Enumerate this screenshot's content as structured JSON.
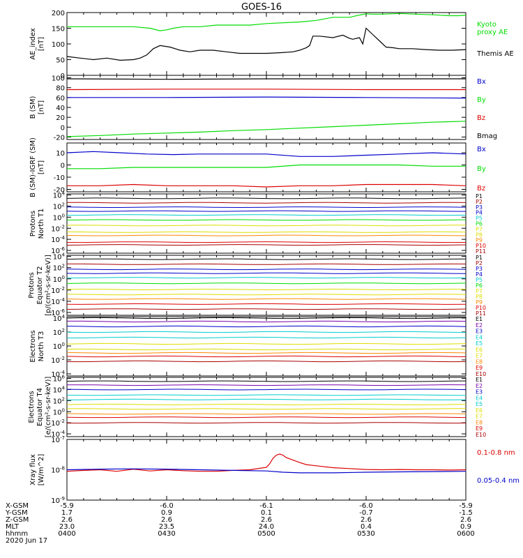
{
  "title": "GOES-16",
  "colors": {
    "black": "#000000",
    "red": "#dd0000",
    "green": "#00dd00",
    "blue": "#0000cc",
    "cyan": "#00cccc",
    "yellow": "#dddd00",
    "orange": "#ff8800",
    "purple": "#7700aa",
    "darkred": "#aa0000",
    "grid": "#000000"
  },
  "date_label": "2020 Jun 17",
  "footer": {
    "rows": [
      {
        "label": "X-GSM",
        "values": [
          "-5.9",
          "-6.0",
          "-6.1",
          "-6.0",
          "-5.9"
        ]
      },
      {
        "label": "Y-GSM",
        "values": [
          "1.7",
          "0.9",
          "0.1",
          "-0.7",
          "-1.5"
        ]
      },
      {
        "label": "Z-GSM",
        "values": [
          "2.6",
          "2.6",
          "2.6",
          "2.6",
          "2.6"
        ]
      },
      {
        "label": "MLT",
        "values": [
          "23.0",
          "23.5",
          "24.0",
          "0.4",
          "0.9"
        ]
      },
      {
        "label": "hhmm",
        "values": [
          "0400",
          "0430",
          "0500",
          "0530",
          "0600"
        ]
      }
    ]
  },
  "chart_data": [
    {
      "type": "line",
      "ylabel": [
        "AE_index",
        "[nT]"
      ],
      "ylim": [
        0,
        200
      ],
      "yticks": [
        "0",
        "50",
        "100",
        "150",
        "200"
      ],
      "scale": "linear",
      "xlim": [
        0,
        120
      ],
      "series": [
        {
          "name": "Kyoto proxy AE",
          "label_lines": [
            "Kyoto",
            "proxy AE"
          ],
          "color": "green",
          "x": [
            0,
            10,
            20,
            25,
            28,
            30,
            32,
            35,
            40,
            45,
            55,
            60,
            70,
            75,
            80,
            85,
            88,
            90,
            92,
            95,
            100,
            105,
            110,
            115,
            118,
            120
          ],
          "y": [
            155,
            155,
            155,
            150,
            142,
            145,
            150,
            155,
            155,
            160,
            160,
            165,
            170,
            175,
            185,
            185,
            192,
            196,
            195,
            195,
            197,
            195,
            193,
            190,
            190,
            192
          ]
        },
        {
          "name": "Themis AE",
          "label_lines": [
            "Themis AE"
          ],
          "color": "black",
          "x": [
            0,
            4,
            8,
            12,
            16,
            20,
            22,
            24,
            26,
            28,
            31,
            34,
            37,
            40,
            44,
            48,
            52,
            56,
            60,
            64,
            68,
            70,
            72,
            73,
            74,
            76,
            80,
            83,
            85,
            86,
            88,
            89,
            90,
            92,
            94,
            96,
            98,
            100,
            104,
            108,
            112,
            116,
            120
          ],
          "y": [
            60,
            55,
            50,
            55,
            48,
            50,
            55,
            65,
            85,
            95,
            90,
            80,
            75,
            80,
            80,
            75,
            70,
            70,
            70,
            72,
            75,
            80,
            88,
            95,
            125,
            125,
            120,
            128,
            118,
            115,
            120,
            100,
            150,
            130,
            110,
            90,
            88,
            85,
            85,
            82,
            80,
            80,
            82
          ]
        }
      ]
    },
    {
      "type": "line",
      "ylabel": [
        "B (SM)",
        "[nT]"
      ],
      "ylim": [
        -25,
        105
      ],
      "yticks": [
        "-20",
        "0",
        "20",
        "40",
        "60",
        "80",
        "100"
      ],
      "scale": "linear",
      "xlim": [
        0,
        120
      ],
      "series": [
        {
          "name": "Bx",
          "color": "blue",
          "x": [
            0,
            30,
            60,
            90,
            120
          ],
          "y": [
            60,
            60,
            61,
            60,
            59
          ]
        },
        {
          "name": "By",
          "color": "green",
          "x": [
            0,
            10,
            20,
            30,
            40,
            50,
            60,
            70,
            80,
            90,
            100,
            110,
            120
          ],
          "y": [
            -19,
            -17,
            -14,
            -12,
            -10,
            -7,
            -5,
            -2,
            1,
            4,
            7,
            10,
            12
          ]
        },
        {
          "name": "Bz",
          "color": "red",
          "x": [
            0,
            30,
            60,
            90,
            120
          ],
          "y": [
            76,
            77,
            77,
            76,
            76
          ]
        },
        {
          "name": "Bmag",
          "color": "black",
          "x": [
            0,
            30,
            60,
            90,
            120
          ],
          "y": [
            98,
            97,
            98,
            98,
            98
          ]
        }
      ]
    },
    {
      "type": "line",
      "ylabel": [
        "B (SM)-IGRF (SM)",
        "[nT]"
      ],
      "ylim": [
        -22,
        18
      ],
      "yticks": [
        "-20",
        "-10",
        "0",
        "10"
      ],
      "scale": "linear",
      "xlim": [
        0,
        120
      ],
      "series": [
        {
          "name": "Bx",
          "color": "blue",
          "x": [
            0,
            8,
            16,
            24,
            32,
            40,
            50,
            60,
            70,
            80,
            90,
            100,
            110,
            120
          ],
          "y": [
            10,
            11,
            10,
            9,
            8.5,
            9,
            9,
            9,
            7,
            7,
            8,
            9,
            10,
            9
          ]
        },
        {
          "name": "By",
          "color": "green",
          "x": [
            0,
            10,
            20,
            30,
            40,
            50,
            60,
            70,
            80,
            90,
            100,
            110,
            120
          ],
          "y": [
            -3,
            -3,
            -2,
            -2,
            -2,
            -2,
            -2,
            0,
            0,
            0,
            0,
            -1,
            -1
          ]
        },
        {
          "name": "Bz",
          "color": "red",
          "x": [
            0,
            10,
            20,
            30,
            40,
            50,
            60,
            70,
            80,
            90,
            100,
            110,
            120
          ],
          "y": [
            -17,
            -17,
            -16,
            -17,
            -17,
            -17,
            -18,
            -17,
            -17,
            -16,
            -16,
            -16,
            -17
          ]
        }
      ]
    },
    {
      "type": "line",
      "ylabel": [
        "Protons",
        "North T1"
      ],
      "ylim": [
        -6.5,
        4.2
      ],
      "yticks": [
        "10^4",
        "10^2",
        "10^0",
        "10^-2",
        "10^-4",
        "10^-6"
      ],
      "scale": "log",
      "xlim": [
        0,
        120
      ],
      "channels": [
        {
          "name": "P1",
          "color": "black",
          "level": 3.4
        },
        {
          "name": "P2",
          "color": "darkred",
          "level": 2.6
        },
        {
          "name": "P3",
          "color": "blue",
          "level": 1.8
        },
        {
          "name": "P4",
          "color": "blue",
          "level": 1.1
        },
        {
          "name": "P5",
          "color": "cyan",
          "level": 0.4
        },
        {
          "name": "P6",
          "color": "green",
          "level": -0.5
        },
        {
          "name": "P7",
          "color": "yellow",
          "level": -1.5
        },
        {
          "name": "P8",
          "color": "yellow",
          "level": -2.7
        },
        {
          "name": "P9",
          "color": "orange",
          "level": -3.3
        },
        {
          "name": "P10",
          "color": "red",
          "level": -4.5
        },
        {
          "name": "P11",
          "color": "darkred",
          "level": -5.0
        }
      ]
    },
    {
      "type": "line",
      "ylabel": [
        "Protons",
        "Equator T2",
        "[p/(cm²-s-sr-keV)]"
      ],
      "ylim": [
        -6.5,
        4.2
      ],
      "yticks": [
        "10^4",
        "10^2",
        "10^0",
        "10^-2",
        "10^-4",
        "10^-6"
      ],
      "scale": "log",
      "xlim": [
        0,
        120
      ],
      "channels": [
        {
          "name": "P1",
          "color": "black",
          "level": 3.5
        },
        {
          "name": "P2",
          "color": "darkred",
          "level": 2.6
        },
        {
          "name": "P3",
          "color": "blue",
          "level": 1.7
        },
        {
          "name": "P4",
          "color": "blue",
          "level": 1.0
        },
        {
          "name": "P5",
          "color": "cyan",
          "level": 0.2
        },
        {
          "name": "P6",
          "color": "green",
          "level": -0.8
        },
        {
          "name": "P7",
          "color": "yellow",
          "level": -1.9
        },
        {
          "name": "P8",
          "color": "yellow",
          "level": -2.8
        },
        {
          "name": "P9",
          "color": "orange",
          "level": -3.6
        },
        {
          "name": "P10",
          "color": "red",
          "level": -4.5
        },
        {
          "name": "P11",
          "color": "darkred",
          "level": -5.4
        }
      ]
    },
    {
      "type": "line",
      "ylabel": [
        "Electrons",
        "North T3"
      ],
      "ylim": [
        -4.3,
        4.2
      ],
      "yticks": [
        "10^4",
        "10^2",
        "10^0",
        "10^-2",
        "10^-4"
      ],
      "scale": "log",
      "xlim": [
        0,
        120
      ],
      "channels": [
        {
          "name": "E1",
          "color": "black",
          "level": 4.0
        },
        {
          "name": "E2",
          "color": "purple",
          "level": 3.5
        },
        {
          "name": "E3",
          "color": "blue",
          "level": 2.8
        },
        {
          "name": "E4",
          "color": "cyan",
          "level": 2.0
        },
        {
          "name": "E5",
          "color": "cyan",
          "level": 1.2
        },
        {
          "name": "E6",
          "color": "yellow",
          "level": 0.3
        },
        {
          "name": "E7",
          "color": "yellow",
          "level": -0.5
        },
        {
          "name": "E8",
          "color": "orange",
          "level": -1.0
        },
        {
          "name": "E9",
          "color": "red",
          "level": -1.5
        },
        {
          "name": "E10",
          "color": "darkred",
          "level": -2.2
        }
      ]
    },
    {
      "type": "line",
      "ylabel": [
        "Electrons",
        "Equator T4",
        "[e/(cm²-s-sr-keV)]"
      ],
      "ylim": [
        -4.5,
        6.2
      ],
      "yticks": [
        "10^6",
        "10^4",
        "10^2",
        "10^0",
        "10^-2",
        "10^-4"
      ],
      "scale": "log",
      "xlim": [
        0,
        120
      ],
      "channels": [
        {
          "name": "E1",
          "color": "black",
          "level": 5.5
        },
        {
          "name": "E2",
          "color": "purple",
          "level": 4.8
        },
        {
          "name": "E3",
          "color": "blue",
          "level": 4.0
        },
        {
          "name": "E4",
          "color": "cyan",
          "level": 3.0
        },
        {
          "name": "E5",
          "color": "cyan",
          "level": 2.2
        },
        {
          "name": "E6",
          "color": "yellow",
          "level": 1.3
        },
        {
          "name": "E7",
          "color": "yellow",
          "level": 0.5
        },
        {
          "name": "E8",
          "color": "orange",
          "level": -0.4
        },
        {
          "name": "E9",
          "color": "red",
          "level": -1.0
        },
        {
          "name": "E10",
          "color": "darkred",
          "level": -2.0
        }
      ]
    },
    {
      "type": "line",
      "ylabel": [
        "Xray flux",
        "[W/m^2]"
      ],
      "ylim": [
        -9,
        -7
      ],
      "yticks": [
        "10^-7",
        "10^-8",
        "10^-9"
      ],
      "scale": "log",
      "xlim": [
        0,
        120
      ],
      "series": [
        {
          "name": "0.1-0.8 nm",
          "color": "red",
          "x": [
            0,
            5,
            10,
            15,
            20,
            25,
            30,
            35,
            40,
            45,
            50,
            55,
            60,
            61,
            62,
            63,
            64,
            65,
            66,
            68,
            70,
            72,
            75,
            80,
            85,
            90,
            95,
            100,
            105,
            110,
            115,
            120
          ],
          "y": [
            -8.05,
            -8.02,
            -8.0,
            -8.05,
            -7.98,
            -8.04,
            -8.0,
            -8.03,
            -8.05,
            -8.05,
            -8.02,
            -8.0,
            -7.92,
            -7.8,
            -7.62,
            -7.52,
            -7.48,
            -7.52,
            -7.6,
            -7.68,
            -7.76,
            -7.83,
            -7.87,
            -7.93,
            -7.96,
            -7.99,
            -8.0,
            -7.99,
            -8.0,
            -8.0,
            -8.01,
            -8.0
          ]
        },
        {
          "name": "0.05-0.4 nm",
          "color": "blue",
          "x": [
            0,
            10,
            20,
            30,
            40,
            50,
            60,
            65,
            70,
            80,
            90,
            100,
            110,
            120
          ],
          "y": [
            -8.0,
            -7.98,
            -7.97,
            -7.98,
            -8.0,
            -8.02,
            -8.04,
            -8.08,
            -8.1,
            -8.1,
            -8.08,
            -8.07,
            -8.06,
            -8.05
          ]
        }
      ]
    }
  ],
  "xaxis": {
    "ticks": [
      "0",
      "30",
      "60",
      "90",
      "120"
    ]
  }
}
